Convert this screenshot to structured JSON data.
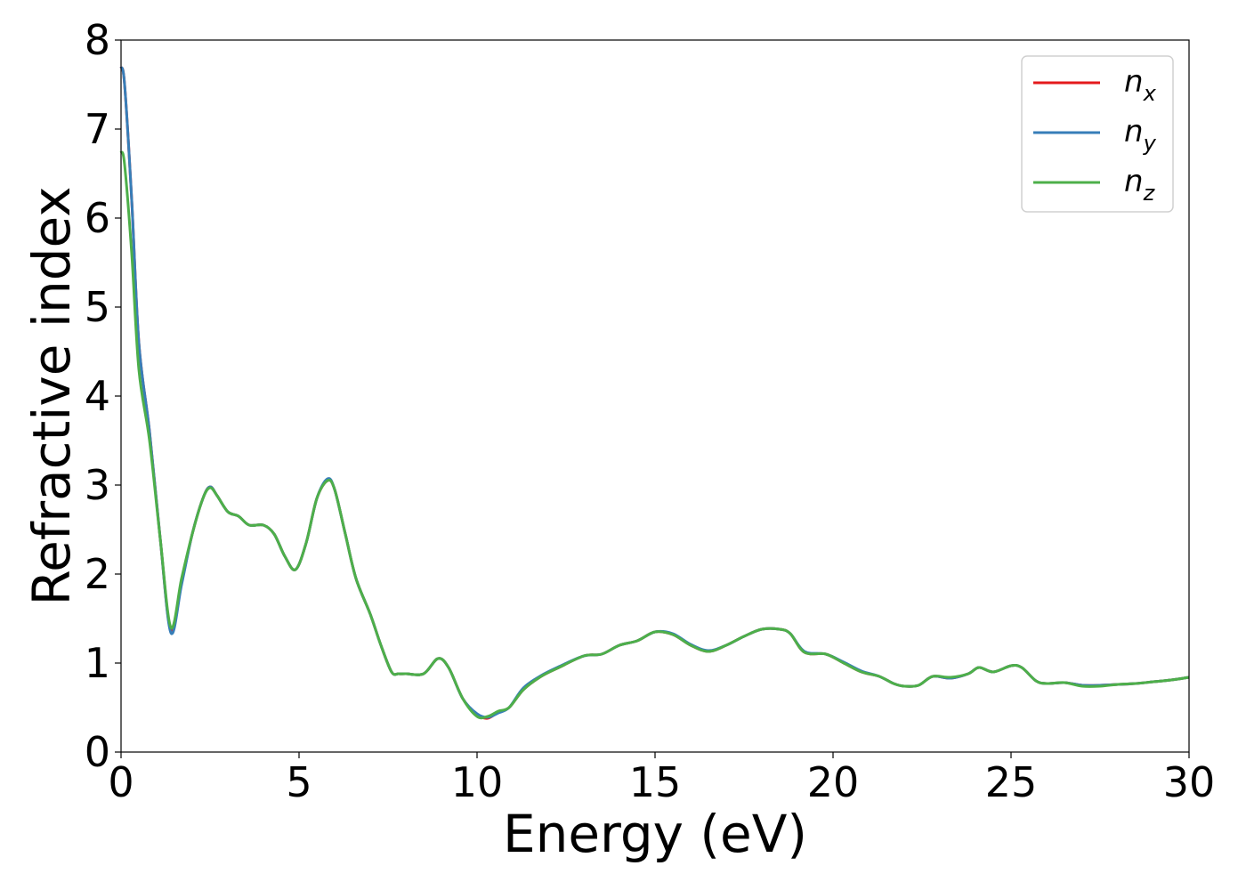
{
  "chart_data": {
    "type": "line",
    "xlabel": "Energy (eV)",
    "ylabel": "Refractive index",
    "xlim": [
      0,
      30
    ],
    "ylim": [
      0,
      8
    ],
    "xticks": [
      0,
      5,
      10,
      15,
      20,
      25,
      30
    ],
    "yticks": [
      0,
      1,
      2,
      3,
      4,
      5,
      6,
      7,
      8
    ],
    "grid": false,
    "legend_position": "top-right",
    "series": [
      {
        "name": "n_x",
        "label_base": "n",
        "label_sub": "x",
        "color": "#e41a1c",
        "x": [
          0,
          0.1,
          0.3,
          0.5,
          0.8,
          1.1,
          1.4,
          1.7,
          2.0,
          2.3,
          2.5,
          2.7,
          3.0,
          3.3,
          3.6,
          4.0,
          4.3,
          4.6,
          4.9,
          5.2,
          5.5,
          5.8,
          6.0,
          6.3,
          6.6,
          7.0,
          7.3,
          7.6,
          7.8,
          8.0,
          8.5,
          8.9,
          9.2,
          9.6,
          10.0,
          10.3,
          10.6,
          10.9,
          11.3,
          11.8,
          12.3,
          13.0,
          13.5,
          14.0,
          14.5,
          15.0,
          15.5,
          16.0,
          16.5,
          17.0,
          17.5,
          18.0,
          18.5,
          18.8,
          19.2,
          19.8,
          20.3,
          20.8,
          21.3,
          21.7,
          22.0,
          22.4,
          22.8,
          23.3,
          23.8,
          24.1,
          24.5,
          25.0,
          25.3,
          25.7,
          26.0,
          26.5,
          27.0,
          27.5,
          28.0,
          28.5,
          29.0,
          29.5,
          30.0
        ],
        "y": [
          7.7,
          7.5,
          6.2,
          4.6,
          3.6,
          2.4,
          1.36,
          1.9,
          2.45,
          2.85,
          2.98,
          2.88,
          2.7,
          2.65,
          2.55,
          2.55,
          2.45,
          2.2,
          2.05,
          2.35,
          2.85,
          3.05,
          2.95,
          2.45,
          1.95,
          1.55,
          1.2,
          0.9,
          0.88,
          0.88,
          0.88,
          1.05,
          0.95,
          0.6,
          0.42,
          0.38,
          0.45,
          0.5,
          0.7,
          0.85,
          0.95,
          1.08,
          1.1,
          1.2,
          1.25,
          1.35,
          1.32,
          1.2,
          1.13,
          1.2,
          1.3,
          1.38,
          1.38,
          1.33,
          1.12,
          1.1,
          1.0,
          0.9,
          0.85,
          0.77,
          0.74,
          0.75,
          0.85,
          0.83,
          0.88,
          0.95,
          0.9,
          0.97,
          0.95,
          0.8,
          0.77,
          0.78,
          0.75,
          0.75,
          0.76,
          0.77,
          0.79,
          0.81,
          0.84
        ]
      },
      {
        "name": "n_y",
        "label_base": "n",
        "label_sub": "y",
        "color": "#377eb8",
        "x": [
          0,
          0.1,
          0.3,
          0.5,
          0.8,
          1.1,
          1.4,
          1.7,
          2.0,
          2.3,
          2.5,
          2.7,
          3.0,
          3.3,
          3.6,
          4.0,
          4.3,
          4.6,
          4.9,
          5.2,
          5.5,
          5.8,
          6.0,
          6.3,
          6.6,
          7.0,
          7.3,
          7.6,
          7.8,
          8.0,
          8.5,
          8.9,
          9.2,
          9.6,
          10.0,
          10.3,
          10.6,
          10.9,
          11.3,
          11.8,
          12.3,
          13.0,
          13.5,
          14.0,
          14.5,
          15.0,
          15.5,
          16.0,
          16.5,
          17.0,
          17.5,
          18.0,
          18.5,
          18.8,
          19.2,
          19.8,
          20.3,
          20.8,
          21.3,
          21.7,
          22.0,
          22.4,
          22.8,
          23.3,
          23.8,
          24.1,
          24.5,
          25.0,
          25.3,
          25.7,
          26.0,
          26.5,
          27.0,
          27.5,
          28.0,
          28.5,
          29.0,
          29.5,
          30.0
        ],
        "y": [
          7.7,
          7.5,
          6.2,
          4.6,
          3.6,
          2.4,
          1.34,
          1.88,
          2.45,
          2.85,
          2.98,
          2.88,
          2.7,
          2.65,
          2.55,
          2.55,
          2.45,
          2.2,
          2.05,
          2.35,
          2.85,
          3.07,
          2.95,
          2.45,
          1.95,
          1.55,
          1.2,
          0.9,
          0.88,
          0.88,
          0.88,
          1.05,
          0.95,
          0.6,
          0.43,
          0.39,
          0.44,
          0.5,
          0.72,
          0.86,
          0.96,
          1.08,
          1.1,
          1.2,
          1.25,
          1.35,
          1.33,
          1.21,
          1.14,
          1.2,
          1.3,
          1.38,
          1.38,
          1.33,
          1.13,
          1.1,
          1.01,
          0.91,
          0.85,
          0.77,
          0.74,
          0.75,
          0.85,
          0.83,
          0.88,
          0.95,
          0.9,
          0.97,
          0.95,
          0.8,
          0.77,
          0.78,
          0.75,
          0.75,
          0.76,
          0.77,
          0.79,
          0.81,
          0.84
        ]
      },
      {
        "name": "n_z",
        "label_base": "n",
        "label_sub": "z",
        "color": "#4daf4a",
        "x": [
          0,
          0.1,
          0.3,
          0.5,
          0.8,
          1.1,
          1.4,
          1.7,
          2.0,
          2.3,
          2.5,
          2.7,
          3.0,
          3.3,
          3.6,
          4.0,
          4.3,
          4.6,
          4.9,
          5.2,
          5.5,
          5.8,
          6.0,
          6.3,
          6.6,
          7.0,
          7.3,
          7.6,
          7.8,
          8.0,
          8.5,
          8.9,
          9.2,
          9.6,
          10.0,
          10.3,
          10.6,
          10.9,
          11.3,
          11.8,
          12.3,
          13.0,
          13.5,
          14.0,
          14.5,
          15.0,
          15.5,
          16.0,
          16.5,
          17.0,
          17.5,
          18.0,
          18.5,
          18.8,
          19.2,
          19.8,
          20.3,
          20.8,
          21.3,
          21.7,
          22.0,
          22.4,
          22.8,
          23.3,
          23.8,
          24.1,
          24.5,
          25.0,
          25.3,
          25.7,
          26.0,
          26.5,
          27.0,
          27.5,
          28.0,
          28.5,
          29.0,
          29.5,
          30.0
        ],
        "y": [
          6.75,
          6.6,
          5.6,
          4.3,
          3.5,
          2.4,
          1.4,
          1.95,
          2.45,
          2.85,
          2.97,
          2.88,
          2.7,
          2.65,
          2.55,
          2.55,
          2.45,
          2.2,
          2.05,
          2.35,
          2.85,
          3.05,
          2.95,
          2.45,
          1.95,
          1.55,
          1.2,
          0.9,
          0.88,
          0.88,
          0.88,
          1.05,
          0.95,
          0.6,
          0.4,
          0.4,
          0.46,
          0.5,
          0.7,
          0.85,
          0.95,
          1.08,
          1.1,
          1.2,
          1.25,
          1.35,
          1.32,
          1.2,
          1.13,
          1.2,
          1.3,
          1.38,
          1.38,
          1.33,
          1.12,
          1.1,
          1.0,
          0.9,
          0.85,
          0.77,
          0.74,
          0.75,
          0.85,
          0.84,
          0.88,
          0.95,
          0.9,
          0.97,
          0.95,
          0.8,
          0.77,
          0.78,
          0.74,
          0.74,
          0.76,
          0.77,
          0.79,
          0.81,
          0.84
        ]
      }
    ]
  }
}
